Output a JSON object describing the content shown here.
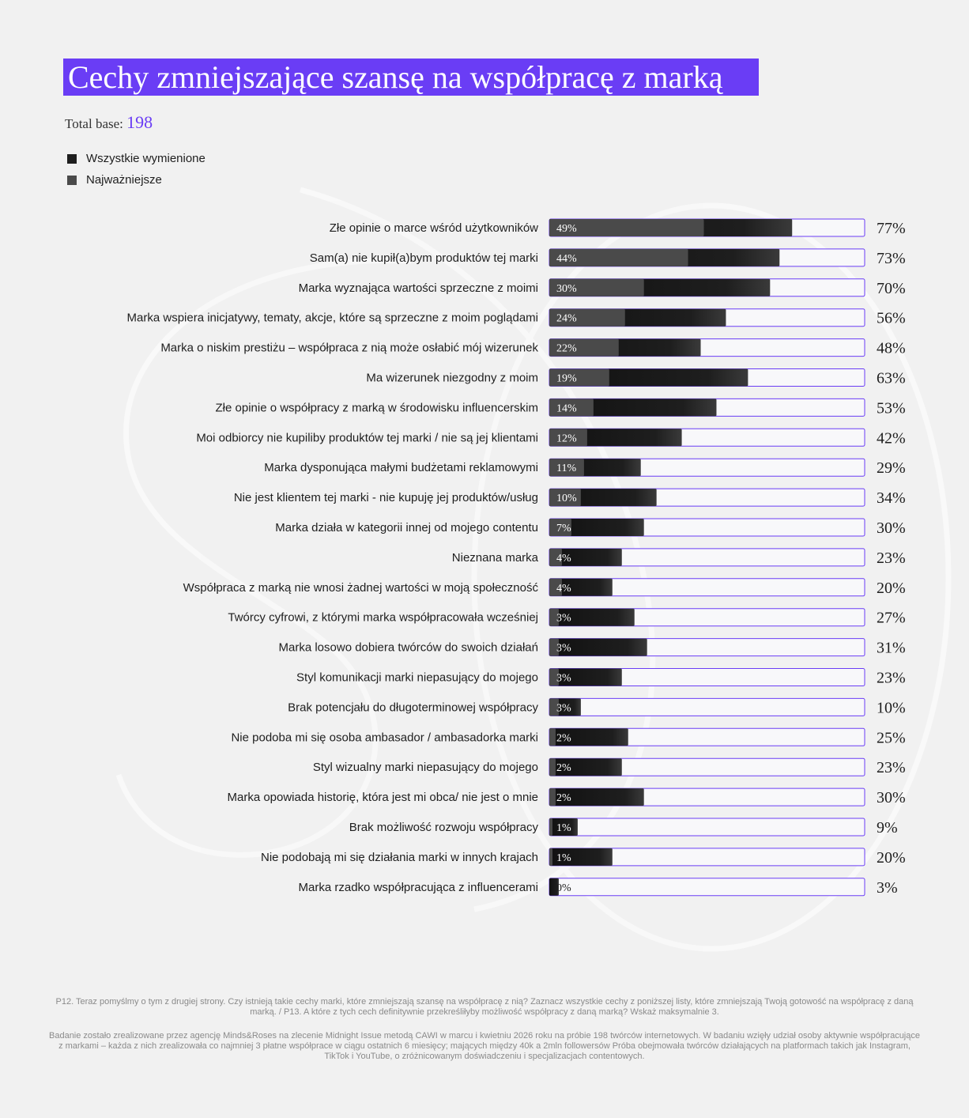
{
  "title": "Cechy zmniejszające szansę na współpracę z marką",
  "base_label": "Total base:",
  "base_value": "198",
  "legend": [
    {
      "label": "Wszystkie wymienione",
      "color": "#1e1e1e"
    },
    {
      "label": "Najważniejsze",
      "color": "#4a4a4a"
    }
  ],
  "chart_data": {
    "type": "bar",
    "orientation": "horizontal",
    "unit": "%",
    "xlim": [
      0,
      100
    ],
    "colors": {
      "all": "#1e1e1e",
      "important": "#4a4a4a",
      "track": "#f8f8fa",
      "track_border": "#6a3df5"
    },
    "categories": [
      "Złe opinie o marce wśród użytkowników",
      "Sam(a) nie kupił(a)bym produktów tej marki",
      "Marka wyznająca wartości sprzeczne z moimi",
      "Marka wspiera inicjatywy, tematy, akcje, które są sprzeczne z moim poglądami",
      "Marka o niskim prestiżu – współpraca z nią może osłabić mój wizerunek",
      "Ma wizerunek niezgodny z moim",
      "Złe opinie o współpracy z marką w środowisku influencerskim",
      "Moi odbiorcy nie kupiliby produktów tej marki / nie są jej klientami",
      "Marka dysponująca małymi budżetami reklamowymi",
      "Nie jest klientem tej marki - nie kupuję jej produktów/usług",
      "Marka działa w kategorii innej od mojego contentu",
      "Nieznana marka",
      "Współpraca z marką nie wnosi żadnej wartości w moją społeczność",
      "Twórcy cyfrowi, z którymi marka współpracowała wcześniej",
      "Marka losowo dobiera twórców do swoich działań",
      "Styl komunikacji marki niepasujący do mojego",
      "Brak potencjału do długoterminowej współpracy",
      "Nie podoba mi się osoba ambasador / ambasadorka marki",
      "Styl wizualny marki niepasujący do mojego",
      "Marka opowiada historię, która jest mi obca/ nie jest o mnie",
      "Brak możliwość rozwoju współpracy",
      "Nie podobają mi się działania marki w innych krajach",
      "Marka rzadko współpracująca z influencerami"
    ],
    "series": [
      {
        "name": "Wszystkie wymienione",
        "values": [
          77,
          73,
          70,
          56,
          48,
          63,
          53,
          42,
          29,
          34,
          30,
          23,
          20,
          27,
          31,
          23,
          10,
          25,
          23,
          30,
          9,
          20,
          3
        ]
      },
      {
        "name": "Najważniejsze",
        "values": [
          49,
          44,
          30,
          24,
          22,
          19,
          14,
          12,
          11,
          10,
          7,
          4,
          4,
          3,
          3,
          3,
          3,
          2,
          2,
          2,
          1,
          1,
          0
        ]
      }
    ],
    "value_labels_all": [
      "77%",
      "73%",
      "70%",
      "56%",
      "48%",
      "63%",
      "53%",
      "42%",
      "29%",
      "34%",
      "30%",
      "23%",
      "20%",
      "27%",
      "31%",
      "23%",
      "10%",
      "25%",
      "23%",
      "30%",
      "9%",
      "20%",
      "3%"
    ],
    "value_labels_important": [
      "49%",
      "44%",
      "30%",
      "24%",
      "22%",
      "19%",
      "14%",
      "12%",
      "11%",
      "10%",
      "7%",
      "4%",
      "4%",
      "3%",
      "3%",
      "3%",
      "3%",
      "2%",
      "2%",
      "2%",
      "1%",
      "1%",
      "0%"
    ]
  },
  "footer": {
    "question": "P12. Teraz pomyślmy o tym z drugiej strony. Czy istnieją takie cechy marki, które zmniejszają szansę na współpracę z nią? Zaznacz wszystkie cechy z poniższej listy, które zmniejszają Twoją gotowość na współpracę z daną marką. / P13. A które z tych cech definitywnie przekreśliłyby możliwość współpracy z daną marką? Wskaż maksymalnie 3.",
    "methodology": "Badanie zostało zrealizowane przez agencję Minds&Roses na zlecenie Midnight Issue metodą CAWI w marcu i kwietniu 2026 roku na próbie 198 twórców internetowych. W badaniu wzięły udział osoby aktywnie współpracujące z markami – każda z nich zrealizowała co najmniej 3 płatne współprace w ciągu ostatnich 6 miesięcy; mających między 40k a 2mln followersów Próba obejmowała twórców działających na platformach takich jak Instagram, TikTok i YouTube, o zróżnicowanym doświadczeniu i specjalizacjach contentowych."
  }
}
